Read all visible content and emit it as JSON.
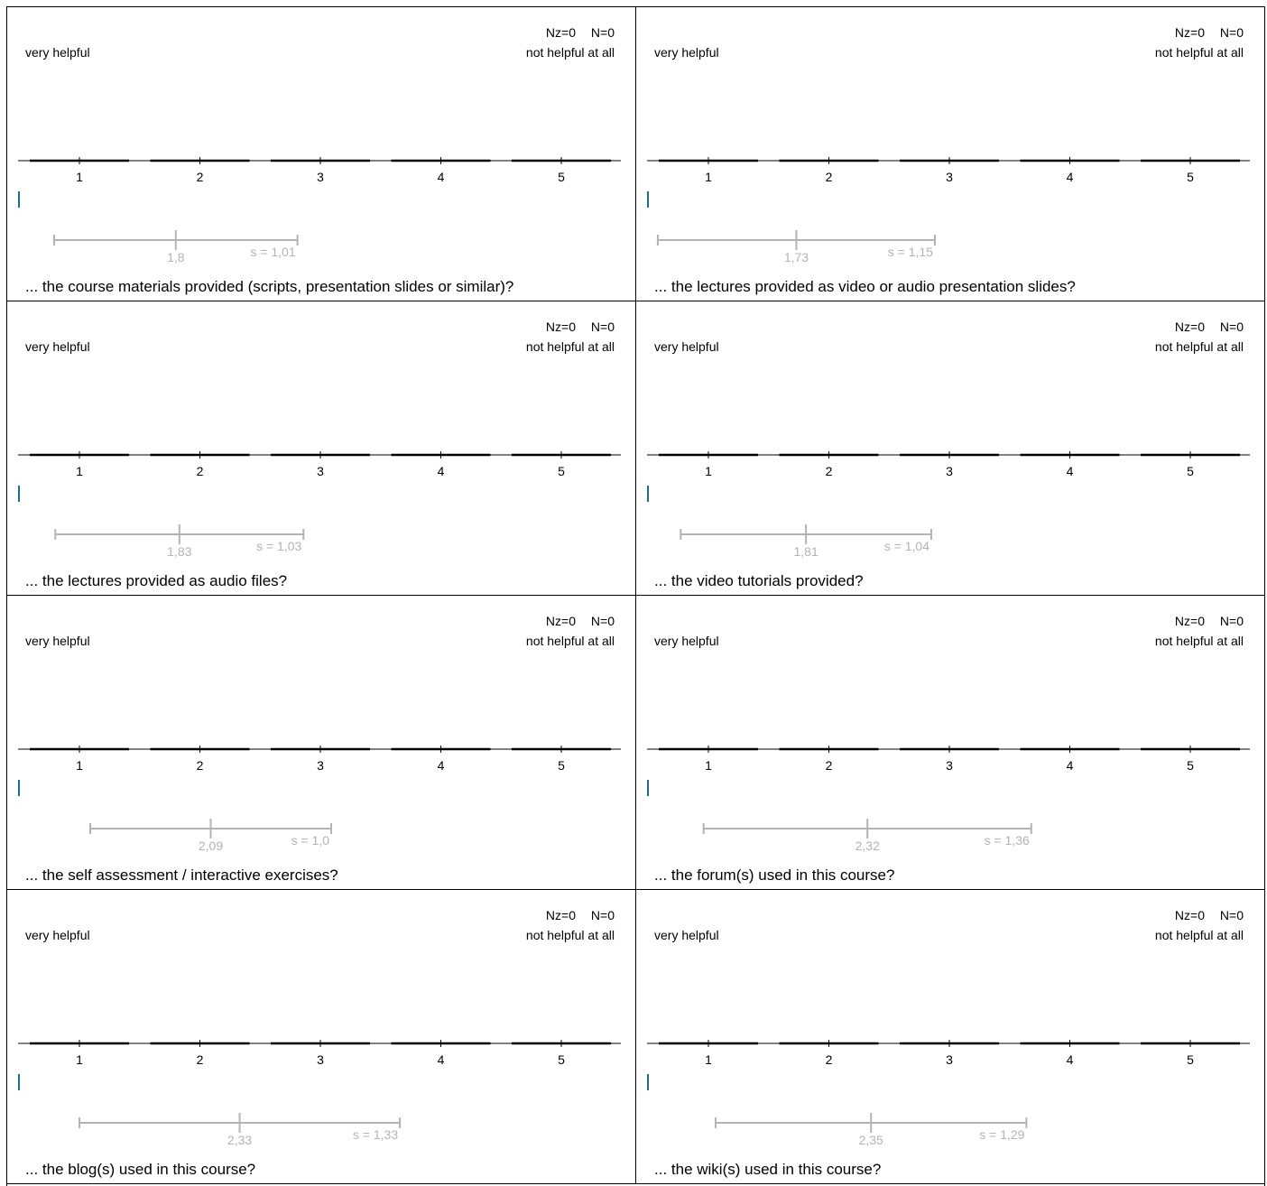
{
  "header": {
    "title": ""
  },
  "chart_data": [
    {
      "type": "histogram",
      "left_label": "very helpful",
      "right_label": "not helpful at all",
      "nz_label": "Nz=0",
      "n_label": "N=0",
      "x_ticks": [
        "1",
        "2",
        "3",
        "4",
        "5"
      ],
      "mean": 1.8,
      "sd": 1.01,
      "mean_label": "1,8",
      "sd_label": "s = 1,01",
      "question": "... the course materials provided (scripts, presentation slides or similar)?"
    },
    {
      "type": "histogram",
      "left_label": "very helpful",
      "right_label": "not helpful at all",
      "nz_label": "Nz=0",
      "n_label": "N=0",
      "x_ticks": [
        "1",
        "2",
        "3",
        "4",
        "5"
      ],
      "mean": 1.73,
      "sd": 1.15,
      "mean_label": "1,73",
      "sd_label": "s = 1,15",
      "question": "... the lectures provided as video or audio presentation slides?"
    },
    {
      "type": "histogram",
      "left_label": "very helpful",
      "right_label": "not helpful at all",
      "nz_label": "Nz=0",
      "n_label": "N=0",
      "x_ticks": [
        "1",
        "2",
        "3",
        "4",
        "5"
      ],
      "mean": 1.83,
      "sd": 1.03,
      "mean_label": "1,83",
      "sd_label": "s = 1,03",
      "question": "... the lectures provided as audio files?"
    },
    {
      "type": "histogram",
      "left_label": "very helpful",
      "right_label": "not helpful at all",
      "nz_label": "Nz=0",
      "n_label": "N=0",
      "x_ticks": [
        "1",
        "2",
        "3",
        "4",
        "5"
      ],
      "mean": 1.81,
      "sd": 1.04,
      "mean_label": "1,81",
      "sd_label": "s = 1,04",
      "question": "... the video tutorials provided?"
    },
    {
      "type": "histogram",
      "left_label": "very helpful",
      "right_label": "not helpful at all",
      "nz_label": "Nz=0",
      "n_label": "N=0",
      "x_ticks": [
        "1",
        "2",
        "3",
        "4",
        "5"
      ],
      "mean": 2.09,
      "sd": 1.0,
      "mean_label": "2,09",
      "sd_label": "s = 1,0",
      "question": "... the self assessment / interactive exercises?"
    },
    {
      "type": "histogram",
      "left_label": "very helpful",
      "right_label": "not helpful at all",
      "nz_label": "Nz=0",
      "n_label": "N=0",
      "x_ticks": [
        "1",
        "2",
        "3",
        "4",
        "5"
      ],
      "mean": 2.32,
      "sd": 1.36,
      "mean_label": "2,32",
      "sd_label": "s = 1,36",
      "question": "... the forum(s) used in this course?"
    },
    {
      "type": "histogram",
      "left_label": "very helpful",
      "right_label": "not helpful at all",
      "nz_label": "Nz=0",
      "n_label": "N=0",
      "x_ticks": [
        "1",
        "2",
        "3",
        "4",
        "5"
      ],
      "mean": 2.33,
      "sd": 1.33,
      "mean_label": "2,33",
      "sd_label": "s = 1,33",
      "question": "... the blog(s) used in this course?"
    },
    {
      "type": "histogram",
      "left_label": "very helpful",
      "right_label": "not helpful at all",
      "nz_label": "Nz=0",
      "n_label": "N=0",
      "x_ticks": [
        "1",
        "2",
        "3",
        "4",
        "5"
      ],
      "mean": 2.35,
      "sd": 1.29,
      "mean_label": "2,35",
      "sd_label": "s = 1,29",
      "question": "... the wiki(s) used in this course?"
    }
  ],
  "colors": {
    "axis": "#000000",
    "stat": "#b3b3b3",
    "marker": "#1f6f8b",
    "border": "#000000"
  }
}
